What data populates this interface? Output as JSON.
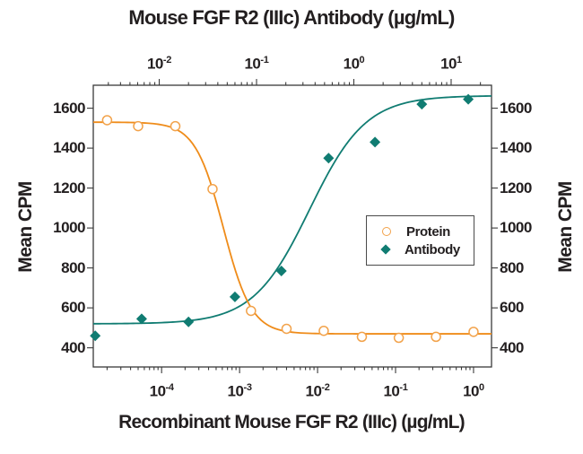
{
  "figure": {
    "top_title": "Mouse FGF R2 (IIIc) Antibody (µg/mL)",
    "bottom_title": "Recombinant Mouse FGF R2 (IIIc) (µg/mL)",
    "left_axis_label": "Mean CPM",
    "right_axis_label": "Mean CPM"
  },
  "legend": {
    "items": [
      {
        "label": "Protein",
        "marker": "open-circle",
        "color": "#F2A24A"
      },
      {
        "label": "Antibody",
        "marker": "filled-diamond",
        "color": "#107C72"
      }
    ]
  },
  "chart_data": {
    "type": "scatter",
    "title": "Mouse FGF R2 (IIIc) Antibody (µg/mL)",
    "xlabel": "Recombinant Mouse FGF R2 (IIIc) (µg/mL)",
    "ylabel": "Mean CPM",
    "grid": false,
    "legend_position": "middle-right",
    "y_axis": {
      "min": 304,
      "max": 1715,
      "ticks": [
        400,
        600,
        800,
        1000,
        1200,
        1400,
        1600
      ]
    },
    "x_axis_bottom": {
      "scale": "log",
      "min": 1.33e-05,
      "max": 1.7,
      "major_ticks": [
        0.0001,
        0.001,
        0.01,
        0.1,
        1
      ]
    },
    "x_axis_top": {
      "scale": "log",
      "min": 0.0021,
      "max": 26,
      "major_ticks": [
        0.01,
        0.1,
        1,
        10
      ]
    },
    "series": [
      {
        "name": "Antibody",
        "axis": "top",
        "marker": "filled-diamond",
        "color": "#107C72",
        "line_color": "#107C72",
        "points": [
          {
            "x": 0.0022,
            "y": 460
          },
          {
            "x": 0.0066,
            "y": 545
          },
          {
            "x": 0.02,
            "y": 530
          },
          {
            "x": 0.06,
            "y": 655
          },
          {
            "x": 0.18,
            "y": 785
          },
          {
            "x": 0.55,
            "y": 1350
          },
          {
            "x": 1.65,
            "y": 1430
          },
          {
            "x": 5,
            "y": 1620
          },
          {
            "x": 15,
            "y": 1645
          }
        ],
        "fit": {
          "top": 1663,
          "bottom": 520,
          "ec50": 0.35,
          "hill": 1.5,
          "direction": "increasing"
        }
      },
      {
        "name": "Protein",
        "axis": "bottom",
        "marker": "open-circle",
        "color": "#F2A24A",
        "line_color": "#EF8C1A",
        "points": [
          {
            "x": 2e-05,
            "y": 1540
          },
          {
            "x": 5e-05,
            "y": 1510
          },
          {
            "x": 0.00015,
            "y": 1510
          },
          {
            "x": 0.00045,
            "y": 1195
          },
          {
            "x": 0.0014,
            "y": 585
          },
          {
            "x": 0.004,
            "y": 495
          },
          {
            "x": 0.012,
            "y": 485
          },
          {
            "x": 0.037,
            "y": 455
          },
          {
            "x": 0.11,
            "y": 450
          },
          {
            "x": 0.33,
            "y": 455
          },
          {
            "x": 1.0,
            "y": 480
          }
        ],
        "fit": {
          "top": 1530,
          "bottom": 470,
          "ec50": 0.00062,
          "hill": 2.4,
          "direction": "decreasing"
        }
      }
    ]
  }
}
